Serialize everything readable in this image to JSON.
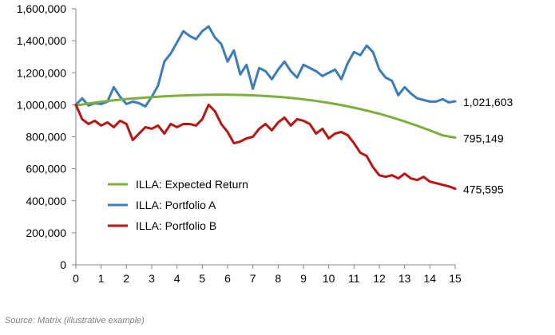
{
  "chart_data": {
    "type": "line",
    "title": "",
    "xlabel": "",
    "ylabel": "",
    "xlim": [
      0,
      15
    ],
    "ylim": [
      0,
      1600000
    ],
    "x_ticks": [
      "0",
      "1",
      "2",
      "3",
      "4",
      "5",
      "6",
      "7",
      "8",
      "9",
      "10",
      "11",
      "12",
      "13",
      "14",
      "15"
    ],
    "y_ticks": [
      "0",
      "200,000",
      "400,000",
      "600,000",
      "800,000",
      "1,000,000",
      "1,200,000",
      "1,400,000",
      "1,600,000"
    ],
    "y_tick_values": [
      0,
      200000,
      400000,
      600000,
      800000,
      1000000,
      1200000,
      1400000,
      1600000
    ],
    "grid": false,
    "legend_position": "lower-left",
    "series": [
      {
        "name": "ILLA: Expected Return",
        "color": "#7bb13b",
        "end_label": "795,149",
        "x": [
          0,
          0.5,
          1,
          1.5,
          2,
          2.5,
          3,
          3.5,
          4,
          4.5,
          5,
          5.5,
          6,
          6.5,
          7,
          7.5,
          8,
          8.5,
          9,
          9.5,
          10,
          10.5,
          11,
          11.5,
          12,
          12.5,
          13,
          13.5,
          14,
          14.5,
          15
        ],
        "values": [
          995000,
          1008000,
          1019000,
          1028000,
          1036000,
          1042000,
          1048000,
          1053000,
          1057000,
          1060000,
          1062000,
          1063000,
          1063000,
          1062000,
          1059000,
          1055000,
          1050000,
          1043000,
          1034000,
          1024000,
          1012000,
          998000,
          982000,
          964000,
          944000,
          921000,
          896000,
          869000,
          840000,
          809000,
          795149
        ]
      },
      {
        "name": "ILLA: Portfolio A",
        "color": "#3a7cbf",
        "end_label": "1,021,603",
        "x": [
          0,
          0.25,
          0.5,
          0.75,
          1,
          1.25,
          1.5,
          1.75,
          2,
          2.25,
          2.5,
          2.75,
          3,
          3.25,
          3.5,
          3.75,
          4,
          4.25,
          4.5,
          4.75,
          5,
          5.25,
          5.5,
          5.75,
          6,
          6.25,
          6.5,
          6.75,
          7,
          7.25,
          7.5,
          7.75,
          8,
          8.25,
          8.5,
          8.75,
          9,
          9.25,
          9.5,
          9.75,
          10,
          10.25,
          10.5,
          10.75,
          11,
          11.25,
          11.5,
          11.75,
          12,
          12.25,
          12.5,
          12.75,
          13,
          13.25,
          13.5,
          13.75,
          14,
          14.25,
          14.5,
          14.75,
          15
        ],
        "values": [
          1000000,
          1040000,
          995000,
          1010000,
          1005000,
          1020000,
          1110000,
          1050000,
          1005000,
          1020000,
          1010000,
          990000,
          1050000,
          1120000,
          1270000,
          1320000,
          1390000,
          1460000,
          1430000,
          1410000,
          1460000,
          1490000,
          1420000,
          1380000,
          1270000,
          1340000,
          1190000,
          1250000,
          1100000,
          1230000,
          1210000,
          1160000,
          1220000,
          1270000,
          1210000,
          1170000,
          1250000,
          1230000,
          1210000,
          1180000,
          1200000,
          1220000,
          1160000,
          1260000,
          1330000,
          1310000,
          1370000,
          1330000,
          1220000,
          1170000,
          1150000,
          1060000,
          1110000,
          1070000,
          1040000,
          1030000,
          1020000,
          1020000,
          1035000,
          1015000,
          1021603
        ]
      },
      {
        "name": "ILLA: Portfolio B",
        "color": "#c0120e",
        "end_label": "475,595",
        "x": [
          0,
          0.25,
          0.5,
          0.75,
          1,
          1.25,
          1.5,
          1.75,
          2,
          2.25,
          2.5,
          2.75,
          3,
          3.25,
          3.5,
          3.75,
          4,
          4.25,
          4.5,
          4.75,
          5,
          5.25,
          5.5,
          5.75,
          6,
          6.25,
          6.5,
          6.75,
          7,
          7.25,
          7.5,
          7.75,
          8,
          8.25,
          8.5,
          8.75,
          9,
          9.25,
          9.5,
          9.75,
          10,
          10.25,
          10.5,
          10.75,
          11,
          11.25,
          11.5,
          11.75,
          12,
          12.25,
          12.5,
          12.75,
          13,
          13.25,
          13.5,
          13.75,
          14,
          14.25,
          14.5,
          14.75,
          15
        ],
        "values": [
          1000000,
          910000,
          880000,
          900000,
          870000,
          890000,
          860000,
          900000,
          880000,
          780000,
          820000,
          860000,
          850000,
          870000,
          820000,
          880000,
          860000,
          880000,
          880000,
          870000,
          910000,
          1000000,
          960000,
          880000,
          830000,
          760000,
          770000,
          790000,
          800000,
          850000,
          880000,
          840000,
          890000,
          920000,
          870000,
          910000,
          900000,
          880000,
          820000,
          850000,
          790000,
          820000,
          830000,
          810000,
          760000,
          700000,
          680000,
          610000,
          560000,
          550000,
          560000,
          540000,
          570000,
          540000,
          530000,
          550000,
          520000,
          510000,
          500000,
          490000,
          475595
        ]
      }
    ]
  },
  "source_note": "Source: Matrix (illustrative example)"
}
